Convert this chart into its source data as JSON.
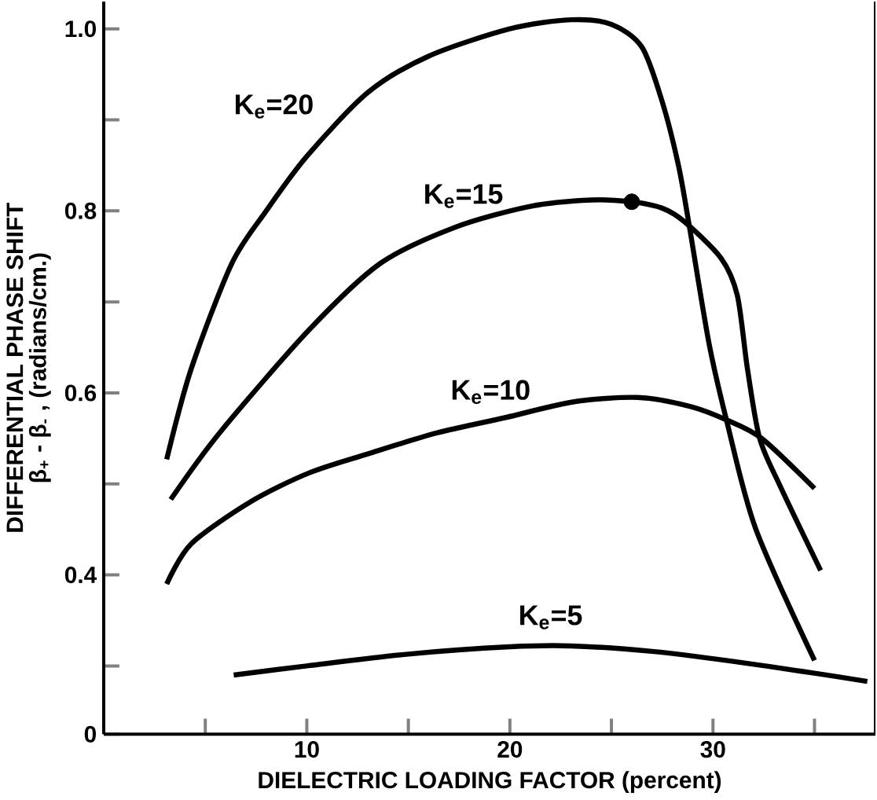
{
  "chart_data": {
    "type": "line",
    "xlabel": "DIELECTRIC LOADING FACTOR (percent)",
    "ylabel": "DIFFERENTIAL PHASE SHIFT",
    "annotations": [
      "β$_{+}$ - β$_{-}$ , (radians/cm.)"
    ],
    "xlim": [
      0,
      38
    ],
    "ylim": [
      0.225,
      1.03
    ],
    "xticks": [
      {
        "value": 5,
        "label": null
      },
      10,
      {
        "value": 15,
        "label": null
      },
      20,
      {
        "value": 25,
        "label": null
      },
      30,
      {
        "value": 35,
        "label": null
      }
    ],
    "yticks": [
      {
        "value": 0.225,
        "label": "0"
      },
      {
        "value": 0.3,
        "label": null
      },
      0.4,
      {
        "value": 0.5,
        "label": null
      },
      0.6,
      {
        "value": 0.7,
        "label": null
      },
      0.8,
      {
        "value": 0.9,
        "label": null
      },
      {
        "value": 1,
        "label": "1.0"
      }
    ],
    "grid": false,
    "legend": false,
    "marker": "none",
    "line_style": "solid",
    "series": [
      {
        "name": "K$_{e}$=20",
        "color": "#000000",
        "x": [
          3.1,
          4.3,
          6.3,
          8,
          10,
          13,
          16,
          20,
          23,
          25,
          26.5,
          27.5,
          28.3,
          28.8,
          29.8,
          30.7,
          32.1,
          35
        ],
        "values": [
          0.527,
          0.626,
          0.742,
          0.8,
          0.86,
          0.93,
          0.97,
          1.0,
          1.01,
          1.005,
          0.98,
          0.92,
          0.85,
          0.788,
          0.655,
          0.567,
          0.451,
          0.306
        ]
      },
      {
        "name": "K$_{e}$=15",
        "color": "#000000",
        "x": [
          3.3,
          5.7,
          10.1,
          13.6,
          17.3,
          21,
          24,
          26,
          27.5,
          28.6,
          30.4,
          31.2,
          31.7,
          32.3,
          33.3,
          35.3
        ],
        "values": [
          0.483,
          0.556,
          0.669,
          0.742,
          0.782,
          0.805,
          0.812,
          0.81,
          0.803,
          0.788,
          0.748,
          0.707,
          0.626,
          0.55,
          0.498,
          0.405
        ]
      },
      {
        "name": "K$_{e}$=10",
        "color": "#000000",
        "x": [
          3.1,
          4.3,
          7.2,
          10.1,
          13,
          16.4,
          19.8,
          23.1,
          26.3,
          28.9,
          30.7,
          32.4,
          35
        ],
        "values": [
          0.39,
          0.434,
          0.48,
          0.512,
          0.533,
          0.556,
          0.573,
          0.59,
          0.595,
          0.585,
          0.57,
          0.55,
          0.495
        ]
      },
      {
        "name": "K$_{e}$=5",
        "color": "#000000",
        "x": [
          6.4,
          10,
          15,
          20,
          23,
          27,
          31,
          35,
          37.6
        ],
        "values": [
          0.29,
          0.3,
          0.313,
          0.321,
          0.322,
          0.316,
          0.305,
          0.292,
          0.283
        ]
      },
      {
        "type": "scatter",
        "marker": "circle",
        "color": "#000000",
        "x": [
          26
        ],
        "values": [
          0.81
        ]
      }
    ]
  }
}
